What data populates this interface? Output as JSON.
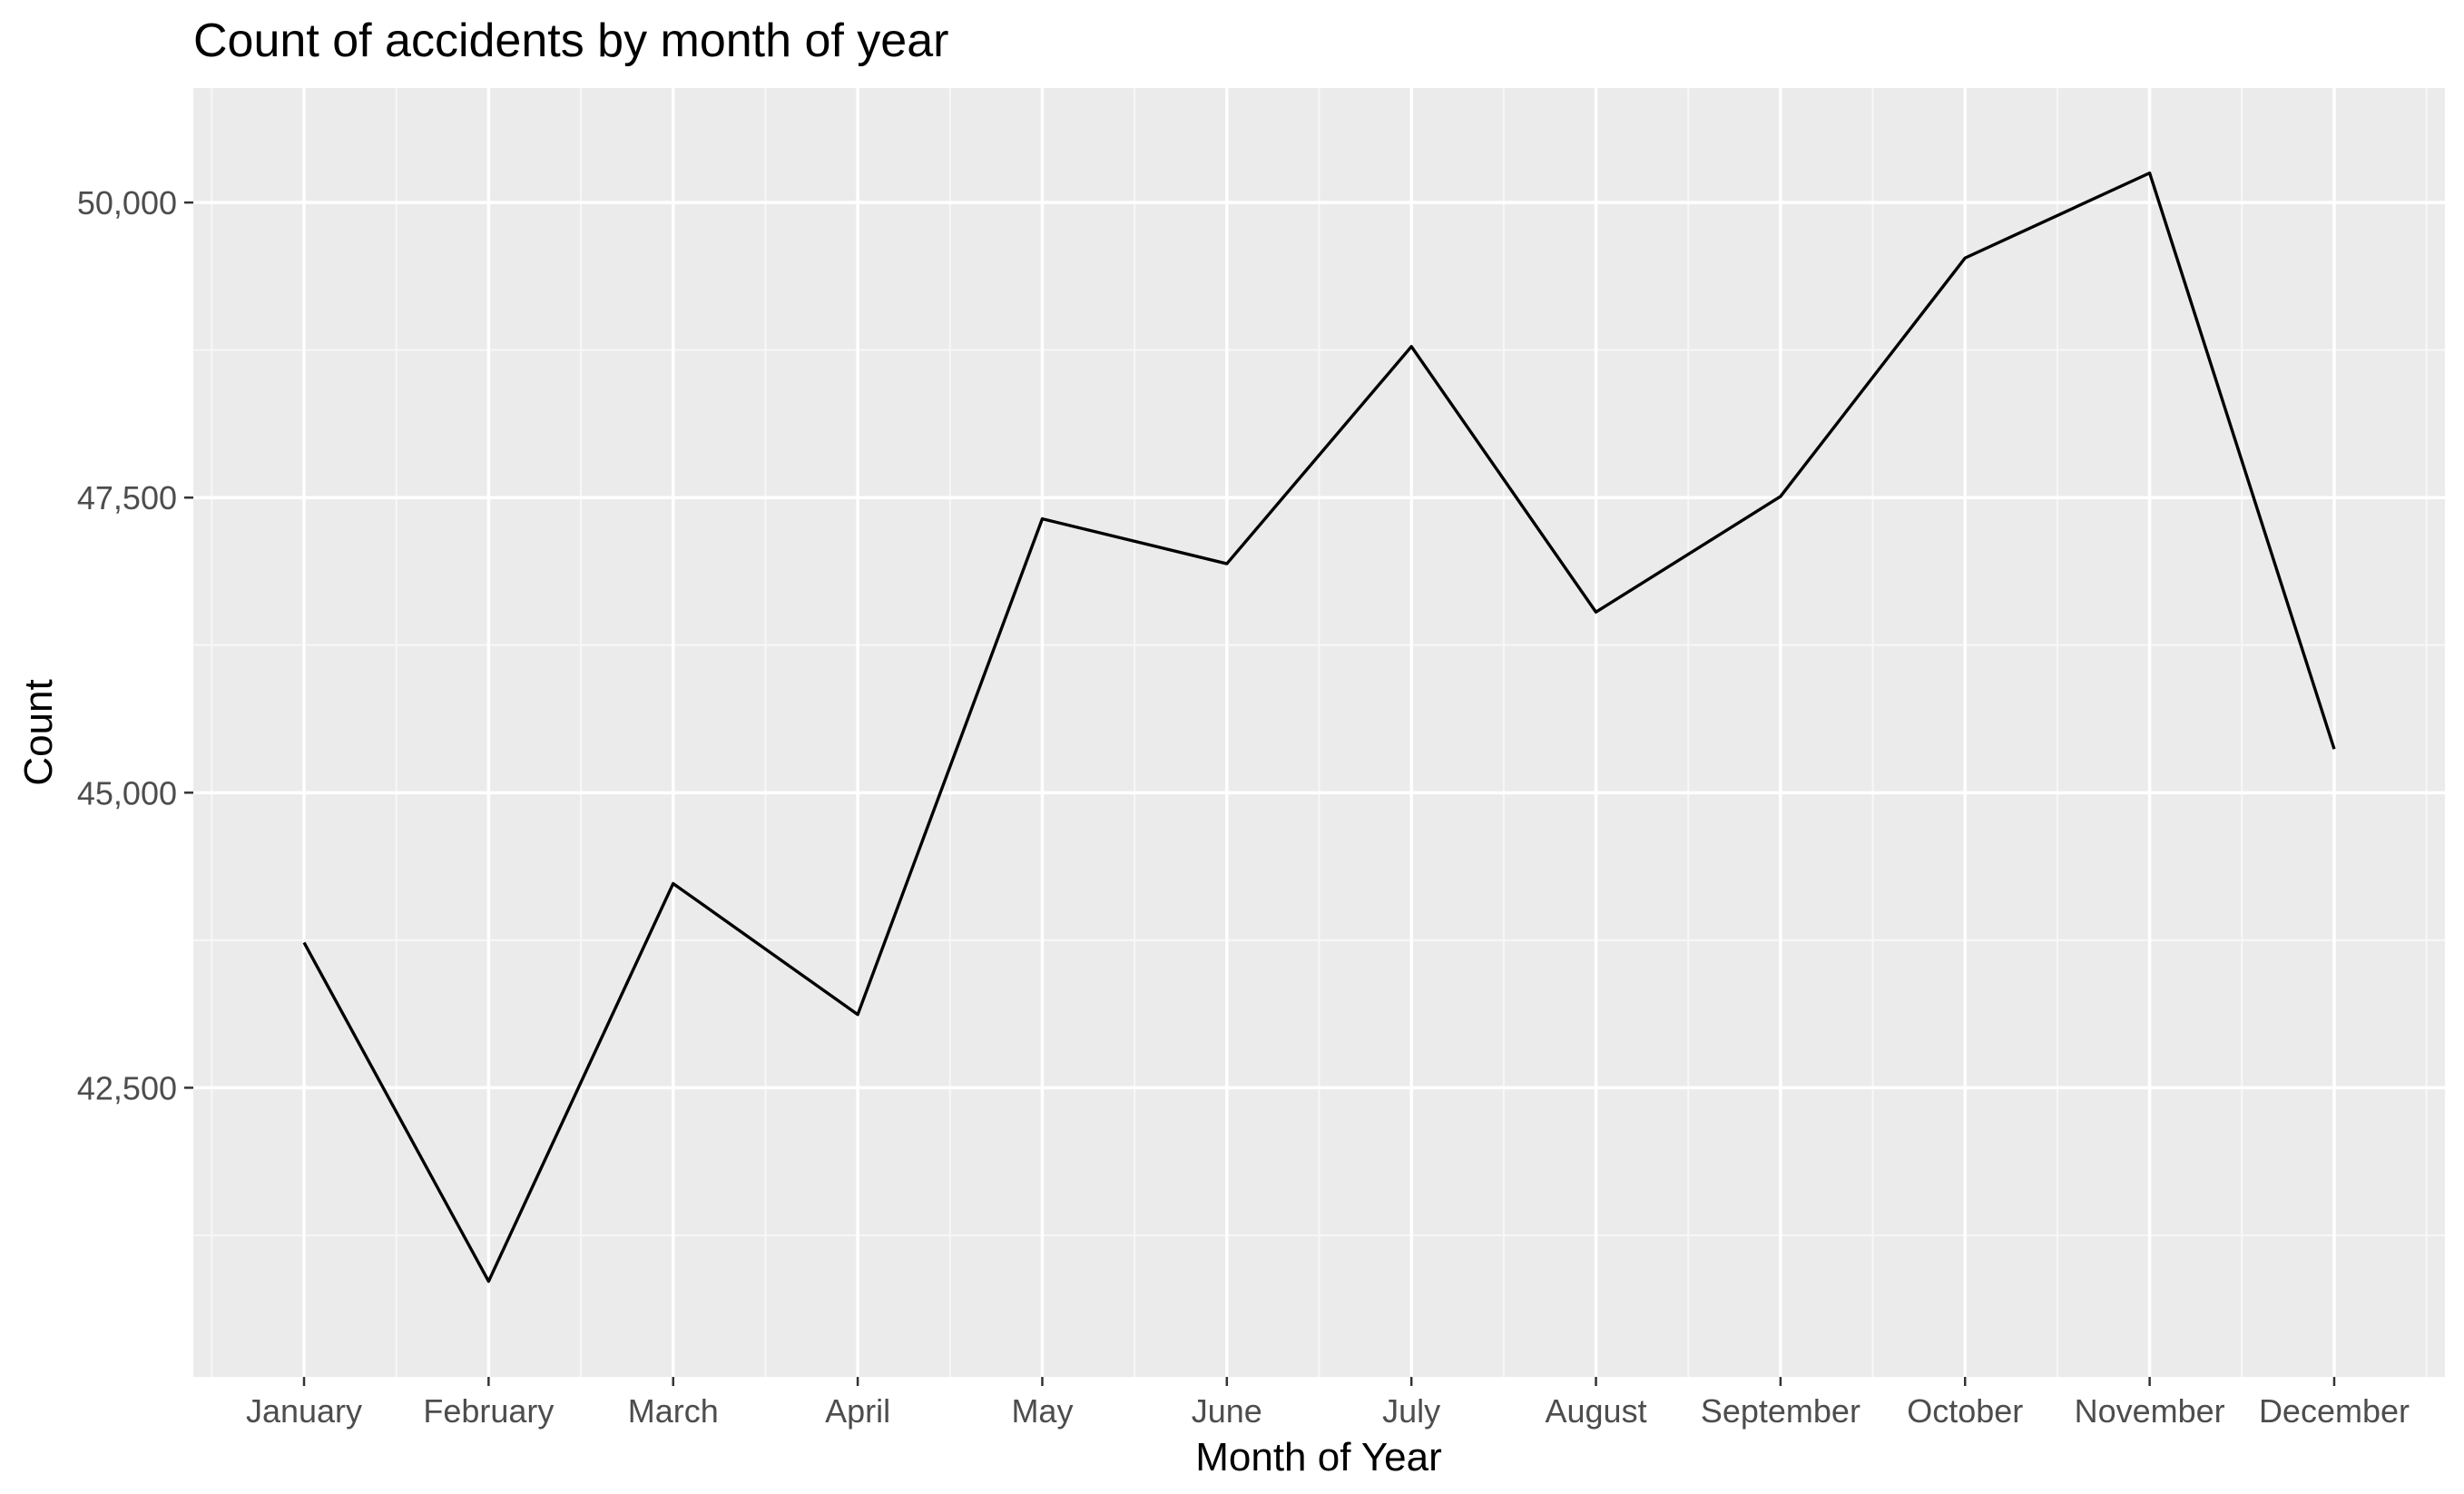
{
  "chart_data": {
    "type": "line",
    "title": "Count of accidents by month of year",
    "xlabel": "Month of Year",
    "ylabel": "Count",
    "categories": [
      "January",
      "February",
      "March",
      "April",
      "May",
      "June",
      "July",
      "August",
      "September",
      "October",
      "November",
      "December"
    ],
    "series": [
      {
        "name": "Count",
        "values": [
          43730,
          40860,
          44230,
          43120,
          47320,
          46940,
          48780,
          46530,
          47510,
          49530,
          50250,
          45370
        ]
      }
    ],
    "ylim": [
      40050,
      50970
    ],
    "yticks": [
      42500,
      45000,
      47500,
      50000
    ],
    "ytick_labels": [
      "42,500",
      "45,000",
      "47,500",
      "50,000"
    ],
    "grid": true,
    "legend": "none",
    "colors": {
      "panel_background": "#ebebeb",
      "grid_major": "#ffffff",
      "grid_minor": "#f7f7f7",
      "line": "#000000",
      "tick": "#333333"
    }
  }
}
